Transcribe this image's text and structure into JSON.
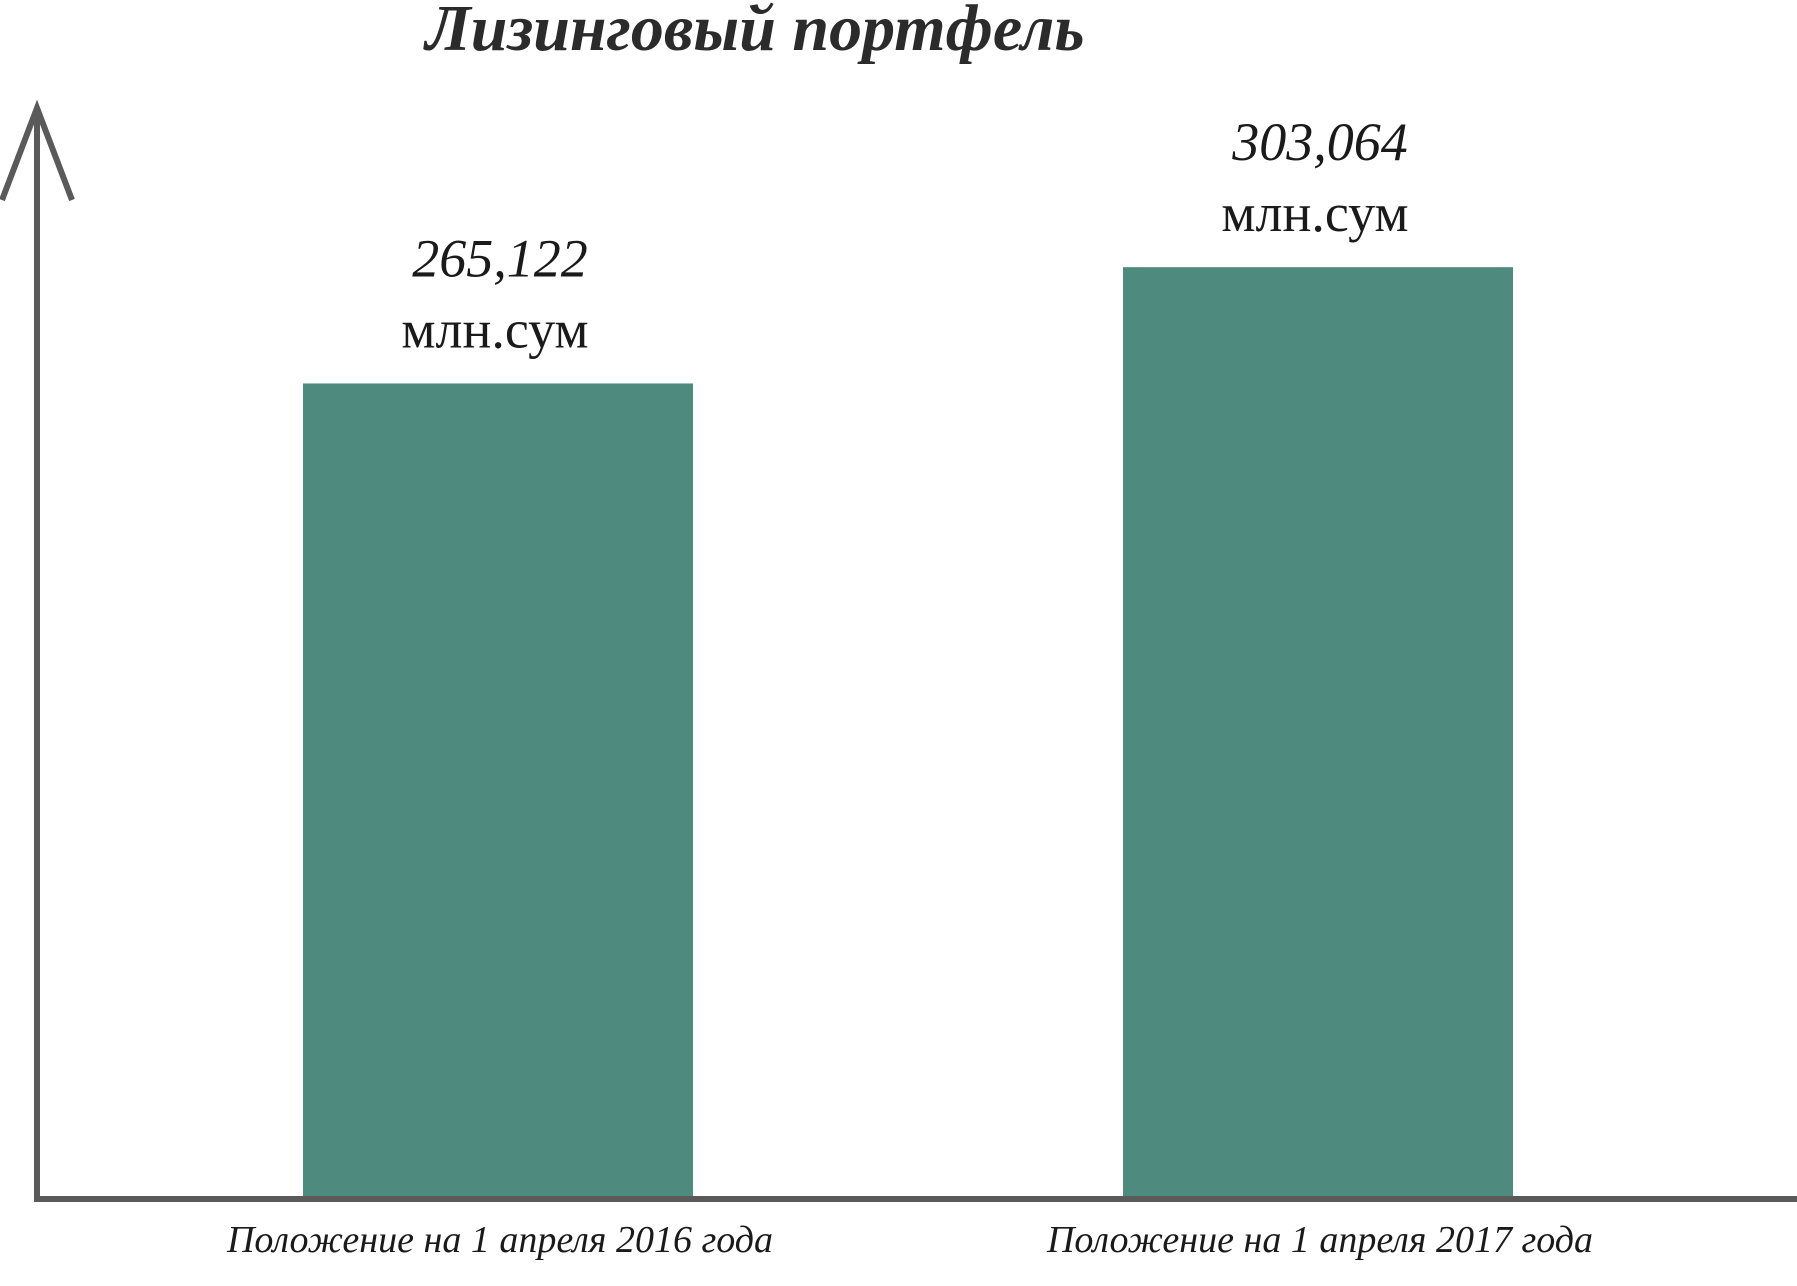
{
  "chart_data": {
    "type": "bar",
    "title": "Лизинговый портфель",
    "categories": [
      "Положение на 1 апреля 2016 года",
      "Положение на 1 апреля 2017 года"
    ],
    "values": [
      265.122,
      303.064
    ],
    "value_labels": [
      "265,122",
      "303,064"
    ],
    "unit": "млн.сум",
    "xlabel": "",
    "ylabel": "",
    "ylim": [
      0,
      355
    ],
    "grid": false,
    "bar_color": "#4e8a7e",
    "axis_color": "#5a5a5a"
  }
}
